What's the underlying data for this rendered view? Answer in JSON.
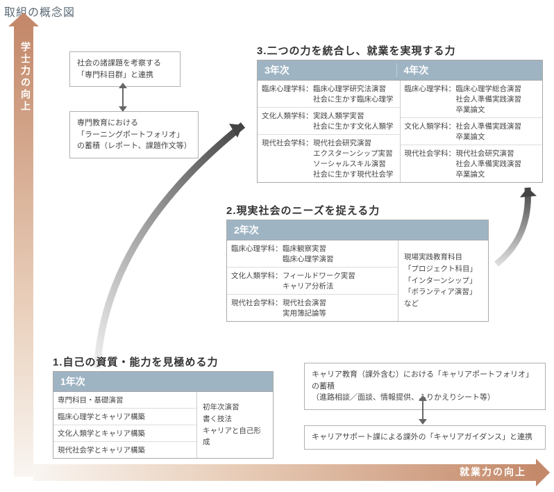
{
  "title": "取組の概念図",
  "y_axis_label": "学士力の向上",
  "x_axis_label": "就業力の向上",
  "colors": {
    "axis_gradient_start": "#f9f5f1",
    "axis_gradient_end": "#c4896a",
    "panel_header_bg": "#9fb4c3",
    "border": "#a8a8a8",
    "text": "#444444",
    "arrow": "#555555"
  },
  "top_boxes": {
    "a": "社会の諸課題を考察する\n「専門科目群」と連携",
    "b": "専門教育における\n「ラーニングポートフォリオ」\nの蓄積（レポート、課題作文等）"
  },
  "section1": {
    "title": "1.自己の資質・能力を見極める力",
    "header": "1年次",
    "left_rows": [
      "専門科目・基礎演習",
      "臨床心理学とキャリア構築",
      "文化人類学とキャリア構築",
      "現代社会学とキャリア構築"
    ],
    "right": "初年次演習\n書く技法\nキャリアと自己形成"
  },
  "section2": {
    "title": "2.現実社会のニーズを捉える力",
    "header": "2年次",
    "rows": [
      {
        "dept": "臨床心理学科：",
        "courses": "臨床観察実習\n臨床心理学演習"
      },
      {
        "dept": "文化人類学科：",
        "courses": "フィールドワーク実習\nキャリア分析法"
      },
      {
        "dept": "現代社会学科：",
        "courses": "現代社会演習\n実用簿記論等"
      }
    ],
    "side": "現場実践教育科目\n「プロジェクト科目」\n「インターンシップ」\n「ボランティア演習」など"
  },
  "section3": {
    "title": "3.二つの力を統合し、就業を実現する力",
    "header_left": "3年次",
    "header_right": "4年次",
    "year3_rows": [
      {
        "dept": "臨床心理学科：",
        "courses": "臨床心理学研究法演習\n社会に生かす臨床心理学"
      },
      {
        "dept": "文化人類学科：",
        "courses": "実践人類学実習\n社会に生かす文化人類学"
      },
      {
        "dept": "現代社会学科：",
        "courses": "現代社会研究演習\nエクスターンシップ実習\nソーシャルスキル演習\n社会に生かす現代社会学"
      }
    ],
    "year4_rows": [
      {
        "dept": "臨床心理学科：",
        "courses": "臨床心理学総合演習\n社会人準備実践演習\n卒業論文"
      },
      {
        "dept": "文化人類学科：",
        "courses": "社会人準備実践演習\n卒業論文"
      },
      {
        "dept": "現代社会学科：",
        "courses": "現代社会研究演習\n社会人準備実践演習\n卒業論文"
      }
    ]
  },
  "bottom_boxes": {
    "a": "キャリア教育（課外含む）における「キャリアポートフォリオ」の蓄積\n（進路相談／面談、情報提供、ふりかえりシート等）",
    "b": "キャリアサポート課による課外の「キャリアガイダンス」と連携"
  }
}
